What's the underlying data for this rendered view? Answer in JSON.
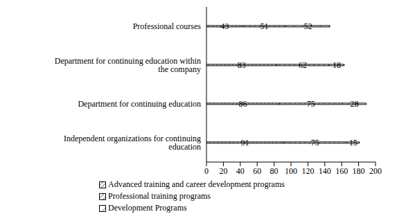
{
  "chart_data": {
    "type": "bar",
    "orientation": "horizontal",
    "stacked": true,
    "data_labels": true,
    "legend": "bottom",
    "grid": false,
    "categories": [
      "Professional courses",
      "Department for continuing education within the company",
      "Department for continuing education",
      "Independent organizations for continuing education"
    ],
    "series": [
      {
        "name": "Advanced training and career development programs",
        "color": "#000000",
        "values": [
          43,
          83,
          86,
          91
        ]
      },
      {
        "name": "Professional training programs",
        "color": "#000000",
        "values": [
          51,
          62,
          75,
          75
        ]
      },
      {
        "name": "Development Programs",
        "color": "#000000",
        "values": [
          52,
          18,
          28,
          15
        ]
      }
    ],
    "xlim": [
      0,
      200
    ],
    "xticks": [
      0,
      20,
      40,
      60,
      80,
      100,
      120,
      140,
      160,
      180,
      200
    ]
  }
}
